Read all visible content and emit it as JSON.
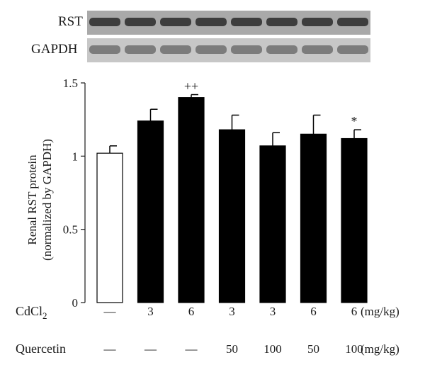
{
  "blots": [
    {
      "label": "RST",
      "lanes": 8,
      "tone": "#2a2a2a",
      "bg": "#a9a9a9"
    },
    {
      "label": "GAPDH",
      "lanes": 8,
      "tone": "#6e6e6e",
      "bg": "#c7c7c7"
    }
  ],
  "chart_data": {
    "type": "bar",
    "ylabel_line1": "Renal RST protein",
    "ylabel_line2": "(normalized by GAPDH)",
    "ylim": [
      0,
      1.5
    ],
    "yticks": [
      "0",
      "0.5",
      "1",
      "1.5"
    ],
    "ytick_values": [
      0,
      0.5,
      1.0,
      1.5
    ],
    "values": [
      1.02,
      1.24,
      1.4,
      1.18,
      1.07,
      1.15,
      1.12
    ],
    "errors": [
      0.05,
      0.08,
      0.02,
      0.1,
      0.09,
      0.13,
      0.06
    ],
    "fills": [
      "#ffffff",
      "#000000",
      "#000000",
      "#000000",
      "#000000",
      "#000000",
      "#000000"
    ],
    "annotations": [
      "",
      "",
      "++",
      "",
      "",
      "",
      "*"
    ],
    "rows": [
      {
        "label_main": "CdCl",
        "label_sub": "2",
        "cells": [
          "—",
          "3",
          "6",
          "3",
          "3",
          "6",
          "6"
        ],
        "unit": "(mg/kg)"
      },
      {
        "label_main": "Quercetin",
        "label_sub": "",
        "cells": [
          "—",
          "—",
          "—",
          "50",
          "100",
          "50",
          "100"
        ],
        "unit": "(mg/kg)"
      }
    ]
  }
}
